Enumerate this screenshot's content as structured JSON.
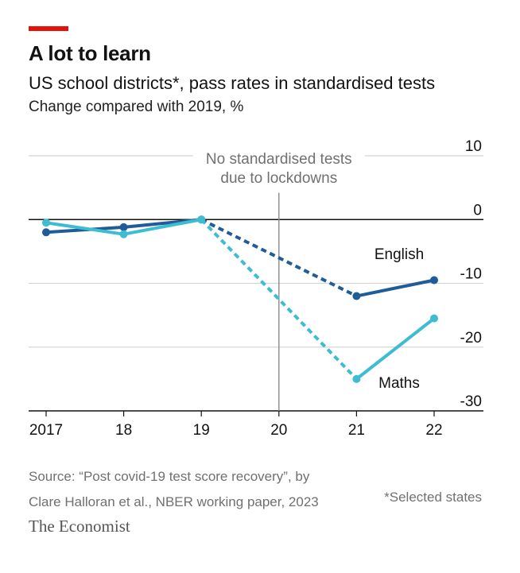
{
  "header": {
    "title": "A lot to learn",
    "subtitle": "US school districts*, pass rates in standardised tests",
    "subsubtitle": "Change compared with 2019, %"
  },
  "footer": {
    "source_line1": "Source: “Post covid-19 test score recovery”, by",
    "source_line2": "Clare Halloran et al., NBER working paper, 2023",
    "note": "*Selected states",
    "brand": "The Economist"
  },
  "colors": {
    "accent_red": "#e3120b",
    "english": "#1f5c99",
    "maths": "#3ebcd2",
    "grid": "#d4d4d4",
    "axis": "#121212"
  },
  "chart_data": {
    "type": "line",
    "x": [
      2017,
      2018,
      2019,
      2020,
      2021,
      2022
    ],
    "x_tick_labels": [
      "2017",
      "18",
      "19",
      "20",
      "21",
      "22"
    ],
    "ylim": [
      -30,
      10
    ],
    "y_ticks": [
      10,
      0,
      -10,
      -20,
      -30
    ],
    "y_tick_labels": [
      "10",
      "0",
      "-10",
      "-20",
      "-30"
    ],
    "grid": true,
    "annotation": {
      "x": 2020,
      "lines": [
        "No standardised tests",
        "due to lockdowns"
      ]
    },
    "series": [
      {
        "name": "English",
        "color": "#1f5c99",
        "points": [
          [
            2017,
            -2
          ],
          [
            2018,
            -1.2
          ],
          [
            2019,
            0
          ],
          [
            2021,
            -12
          ],
          [
            2022,
            -9.5
          ]
        ],
        "dashed_segment": [
          2019,
          2021
        ]
      },
      {
        "name": "Maths",
        "color": "#3ebcd2",
        "points": [
          [
            2017,
            -0.5
          ],
          [
            2018,
            -2.3
          ],
          [
            2019,
            0
          ],
          [
            2021,
            -25
          ],
          [
            2022,
            -15.5
          ]
        ],
        "dashed_segment": [
          2019,
          2021
        ]
      }
    ]
  }
}
